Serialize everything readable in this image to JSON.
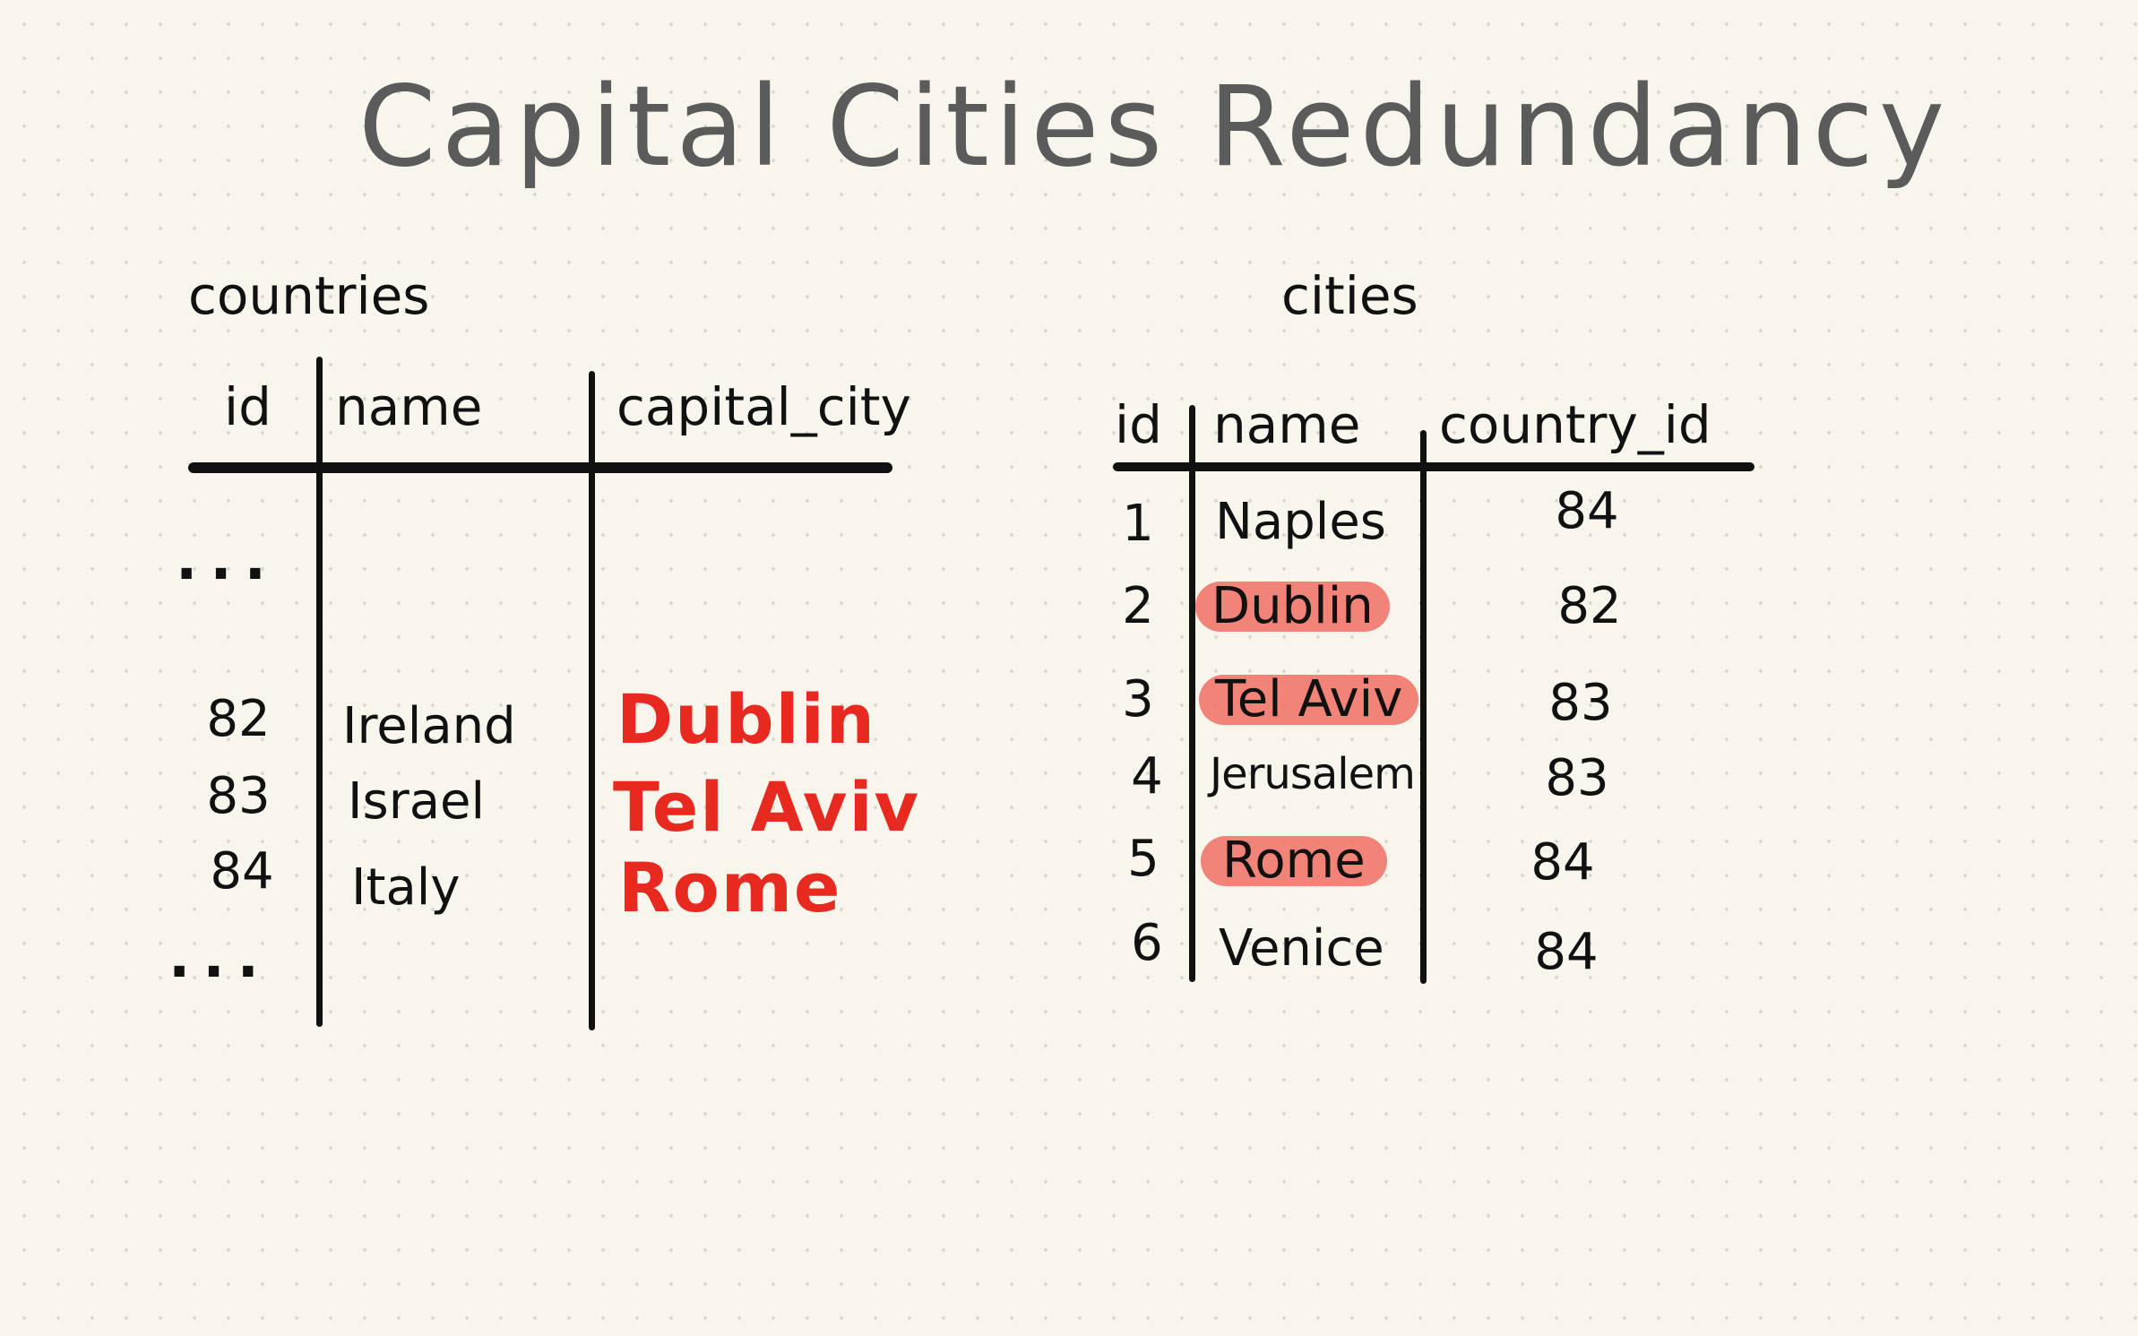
{
  "title": "Capital Cities Redundancy",
  "countries": {
    "label": "countries",
    "columns": [
      "id",
      "name",
      "capital_city"
    ],
    "top_ellipsis": "...",
    "bottom_ellipsis": "...",
    "rows": [
      {
        "id": "82",
        "name": "Ireland",
        "capital_city": "Dublin"
      },
      {
        "id": "83",
        "name": "Israel",
        "capital_city": "Tel Aviv"
      },
      {
        "id": "84",
        "name": "Italy",
        "capital_city": "Rome"
      }
    ]
  },
  "cities": {
    "label": "cities",
    "columns": [
      "id",
      "name",
      "country_id"
    ],
    "rows": [
      {
        "id": "1",
        "name": "Naples",
        "country_id": "84",
        "highlighted": false
      },
      {
        "id": "2",
        "name": "Dublin",
        "country_id": "82",
        "highlighted": true
      },
      {
        "id": "3",
        "name": "Tel Aviv",
        "country_id": "83",
        "highlighted": true
      },
      {
        "id": "4",
        "name": "Jerusalem",
        "country_id": "83",
        "highlighted": false
      },
      {
        "id": "5",
        "name": "Rome",
        "country_id": "84",
        "highlighted": true
      },
      {
        "id": "6",
        "name": "Venice",
        "country_id": "84",
        "highlighted": false
      }
    ]
  },
  "colors": {
    "capital_text": "#e8291f",
    "highlight": "#f06e64",
    "title": "#5b5b5b",
    "ink": "#111111",
    "paper": "#f8f6ec"
  }
}
